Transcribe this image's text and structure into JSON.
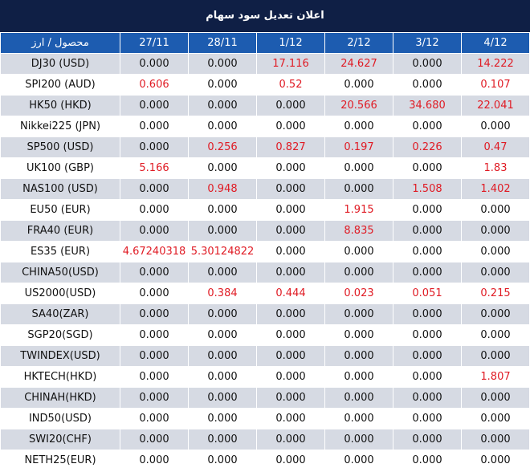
{
  "title": "اعلان تعديل سود سهام",
  "table": {
    "header": [
      "محصول / ارز",
      "27/11",
      "28/11",
      "1/12",
      "2/12",
      "3/12",
      "4/12"
    ],
    "rows": [
      [
        "DJ30 (USD)",
        "0.000",
        "0.000",
        "17.116",
        "24.627",
        "0.000",
        "14.222"
      ],
      [
        "SPI200 (AUD)",
        "0.606",
        "0.000",
        "0.52",
        "0.000",
        "0.000",
        "0.107"
      ],
      [
        "HK50 (HKD)",
        "0.000",
        "0.000",
        "0.000",
        "20.566",
        "34.680",
        "22.041"
      ],
      [
        "Nikkei225 (JPN)",
        "0.000",
        "0.000",
        "0.000",
        "0.000",
        "0.000",
        "0.000"
      ],
      [
        "SP500 (USD)",
        "0.000",
        "0.256",
        "0.827",
        "0.197",
        "0.226",
        "0.47"
      ],
      [
        "UK100 (GBP)",
        "5.166",
        "0.000",
        "0.000",
        "0.000",
        "0.000",
        "1.83"
      ],
      [
        "NAS100 (USD)",
        "0.000",
        "0.948",
        "0.000",
        "0.000",
        "1.508",
        "1.402"
      ],
      [
        "EU50 (EUR)",
        "0.000",
        "0.000",
        "0.000",
        "1.915",
        "0.000",
        "0.000"
      ],
      [
        "FRA40 (EUR)",
        "0.000",
        "0.000",
        "0.000",
        "8.835",
        "0.000",
        "0.000"
      ],
      [
        "ES35 (EUR)",
        "4.67240318",
        "5.30124822",
        "0.000",
        "0.000",
        "0.000",
        "0.000"
      ],
      [
        "CHINA50(USD)",
        "0.000",
        "0.000",
        "0.000",
        "0.000",
        "0.000",
        "0.000"
      ],
      [
        "US2000(USD)",
        "0.000",
        "0.384",
        "0.444",
        "0.023",
        "0.051",
        "0.215"
      ],
      [
        "SA40(ZAR)",
        "0.000",
        "0.000",
        "0.000",
        "0.000",
        "0.000",
        "0.000"
      ],
      [
        "SGP20(SGD)",
        "0.000",
        "0.000",
        "0.000",
        "0.000",
        "0.000",
        "0.000"
      ],
      [
        "TWINDEX(USD)",
        "0.000",
        "0.000",
        "0.000",
        "0.000",
        "0.000",
        "0.000"
      ],
      [
        "HKTECH(HKD)",
        "0.000",
        "0.000",
        "0.000",
        "0.000",
        "0.000",
        "1.807"
      ],
      [
        "CHINAH(HKD)",
        "0.000",
        "0.000",
        "0.000",
        "0.000",
        "0.000",
        "0.000"
      ],
      [
        "IND50(USD)",
        "0.000",
        "0.000",
        "0.000",
        "0.000",
        "0.000",
        "0.000"
      ],
      [
        "SWI20(CHF)",
        "0.000",
        "0.000",
        "0.000",
        "0.000",
        "0.000",
        "0.000"
      ],
      [
        "NETH25(EUR)",
        "0.000",
        "0.000",
        "0.000",
        "0.000",
        "0.000",
        "0.000"
      ]
    ]
  }
}
